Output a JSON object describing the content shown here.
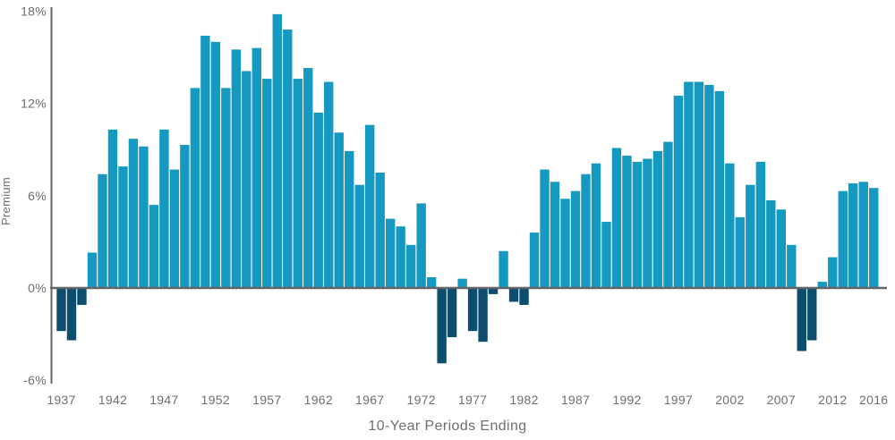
{
  "chart_data": {
    "type": "bar",
    "title": "",
    "xlabel": "10-Year Periods Ending",
    "ylabel": "Premium",
    "categories": [
      1937,
      1938,
      1939,
      1940,
      1941,
      1942,
      1943,
      1944,
      1945,
      1946,
      1947,
      1948,
      1949,
      1950,
      1951,
      1952,
      1953,
      1954,
      1955,
      1956,
      1957,
      1958,
      1959,
      1960,
      1961,
      1962,
      1963,
      1964,
      1965,
      1966,
      1967,
      1968,
      1969,
      1970,
      1971,
      1972,
      1973,
      1974,
      1975,
      1976,
      1977,
      1978,
      1979,
      1980,
      1981,
      1982,
      1983,
      1984,
      1985,
      1986,
      1987,
      1988,
      1989,
      1990,
      1991,
      1992,
      1993,
      1994,
      1995,
      1996,
      1997,
      1998,
      1999,
      2000,
      2001,
      2002,
      2003,
      2004,
      2005,
      2006,
      2007,
      2008,
      2009,
      2010,
      2011,
      2012,
      2013,
      2014,
      2015,
      2016
    ],
    "values": [
      -2.8,
      -3.4,
      -1.1,
      2.3,
      7.4,
      10.3,
      7.9,
      9.7,
      9.2,
      5.4,
      10.3,
      7.7,
      9.3,
      13.0,
      16.4,
      16.0,
      13.0,
      15.5,
      14.1,
      15.6,
      13.6,
      17.8,
      16.8,
      13.6,
      14.3,
      11.4,
      13.4,
      10.1,
      8.9,
      6.7,
      10.6,
      7.5,
      4.5,
      4.0,
      2.8,
      5.5,
      0.7,
      -4.9,
      -3.2,
      0.6,
      -2.8,
      -3.5,
      -0.4,
      2.4,
      -0.9,
      -1.1,
      3.6,
      7.7,
      6.9,
      5.8,
      6.3,
      7.4,
      8.1,
      4.3,
      9.1,
      8.6,
      8.2,
      8.4,
      8.9,
      9.5,
      12.5,
      13.4,
      13.4,
      13.2,
      12.8,
      8.1,
      4.6,
      6.7,
      8.2,
      5.7,
      5.1,
      2.8,
      -4.1,
      -3.4,
      0.4,
      2.0,
      6.3,
      6.8,
      6.9,
      6.5
    ],
    "ylim": [
      -6,
      18
    ],
    "yticks": [
      -6,
      0,
      6,
      12,
      18
    ],
    "ytick_labels": [
      "-6%",
      "0%",
      "6%",
      "12%",
      "18%"
    ],
    "xticks": [
      1937,
      1942,
      1947,
      1952,
      1957,
      1962,
      1967,
      1972,
      1977,
      1982,
      1987,
      1992,
      1997,
      2002,
      2007,
      2012,
      2016
    ],
    "grid": "off",
    "legend": "none",
    "colors": {
      "positive_bar": "#1599C0",
      "negative_bar": "#0D4D6E",
      "axis_line": "#646568",
      "text": "#6D6E71"
    }
  }
}
